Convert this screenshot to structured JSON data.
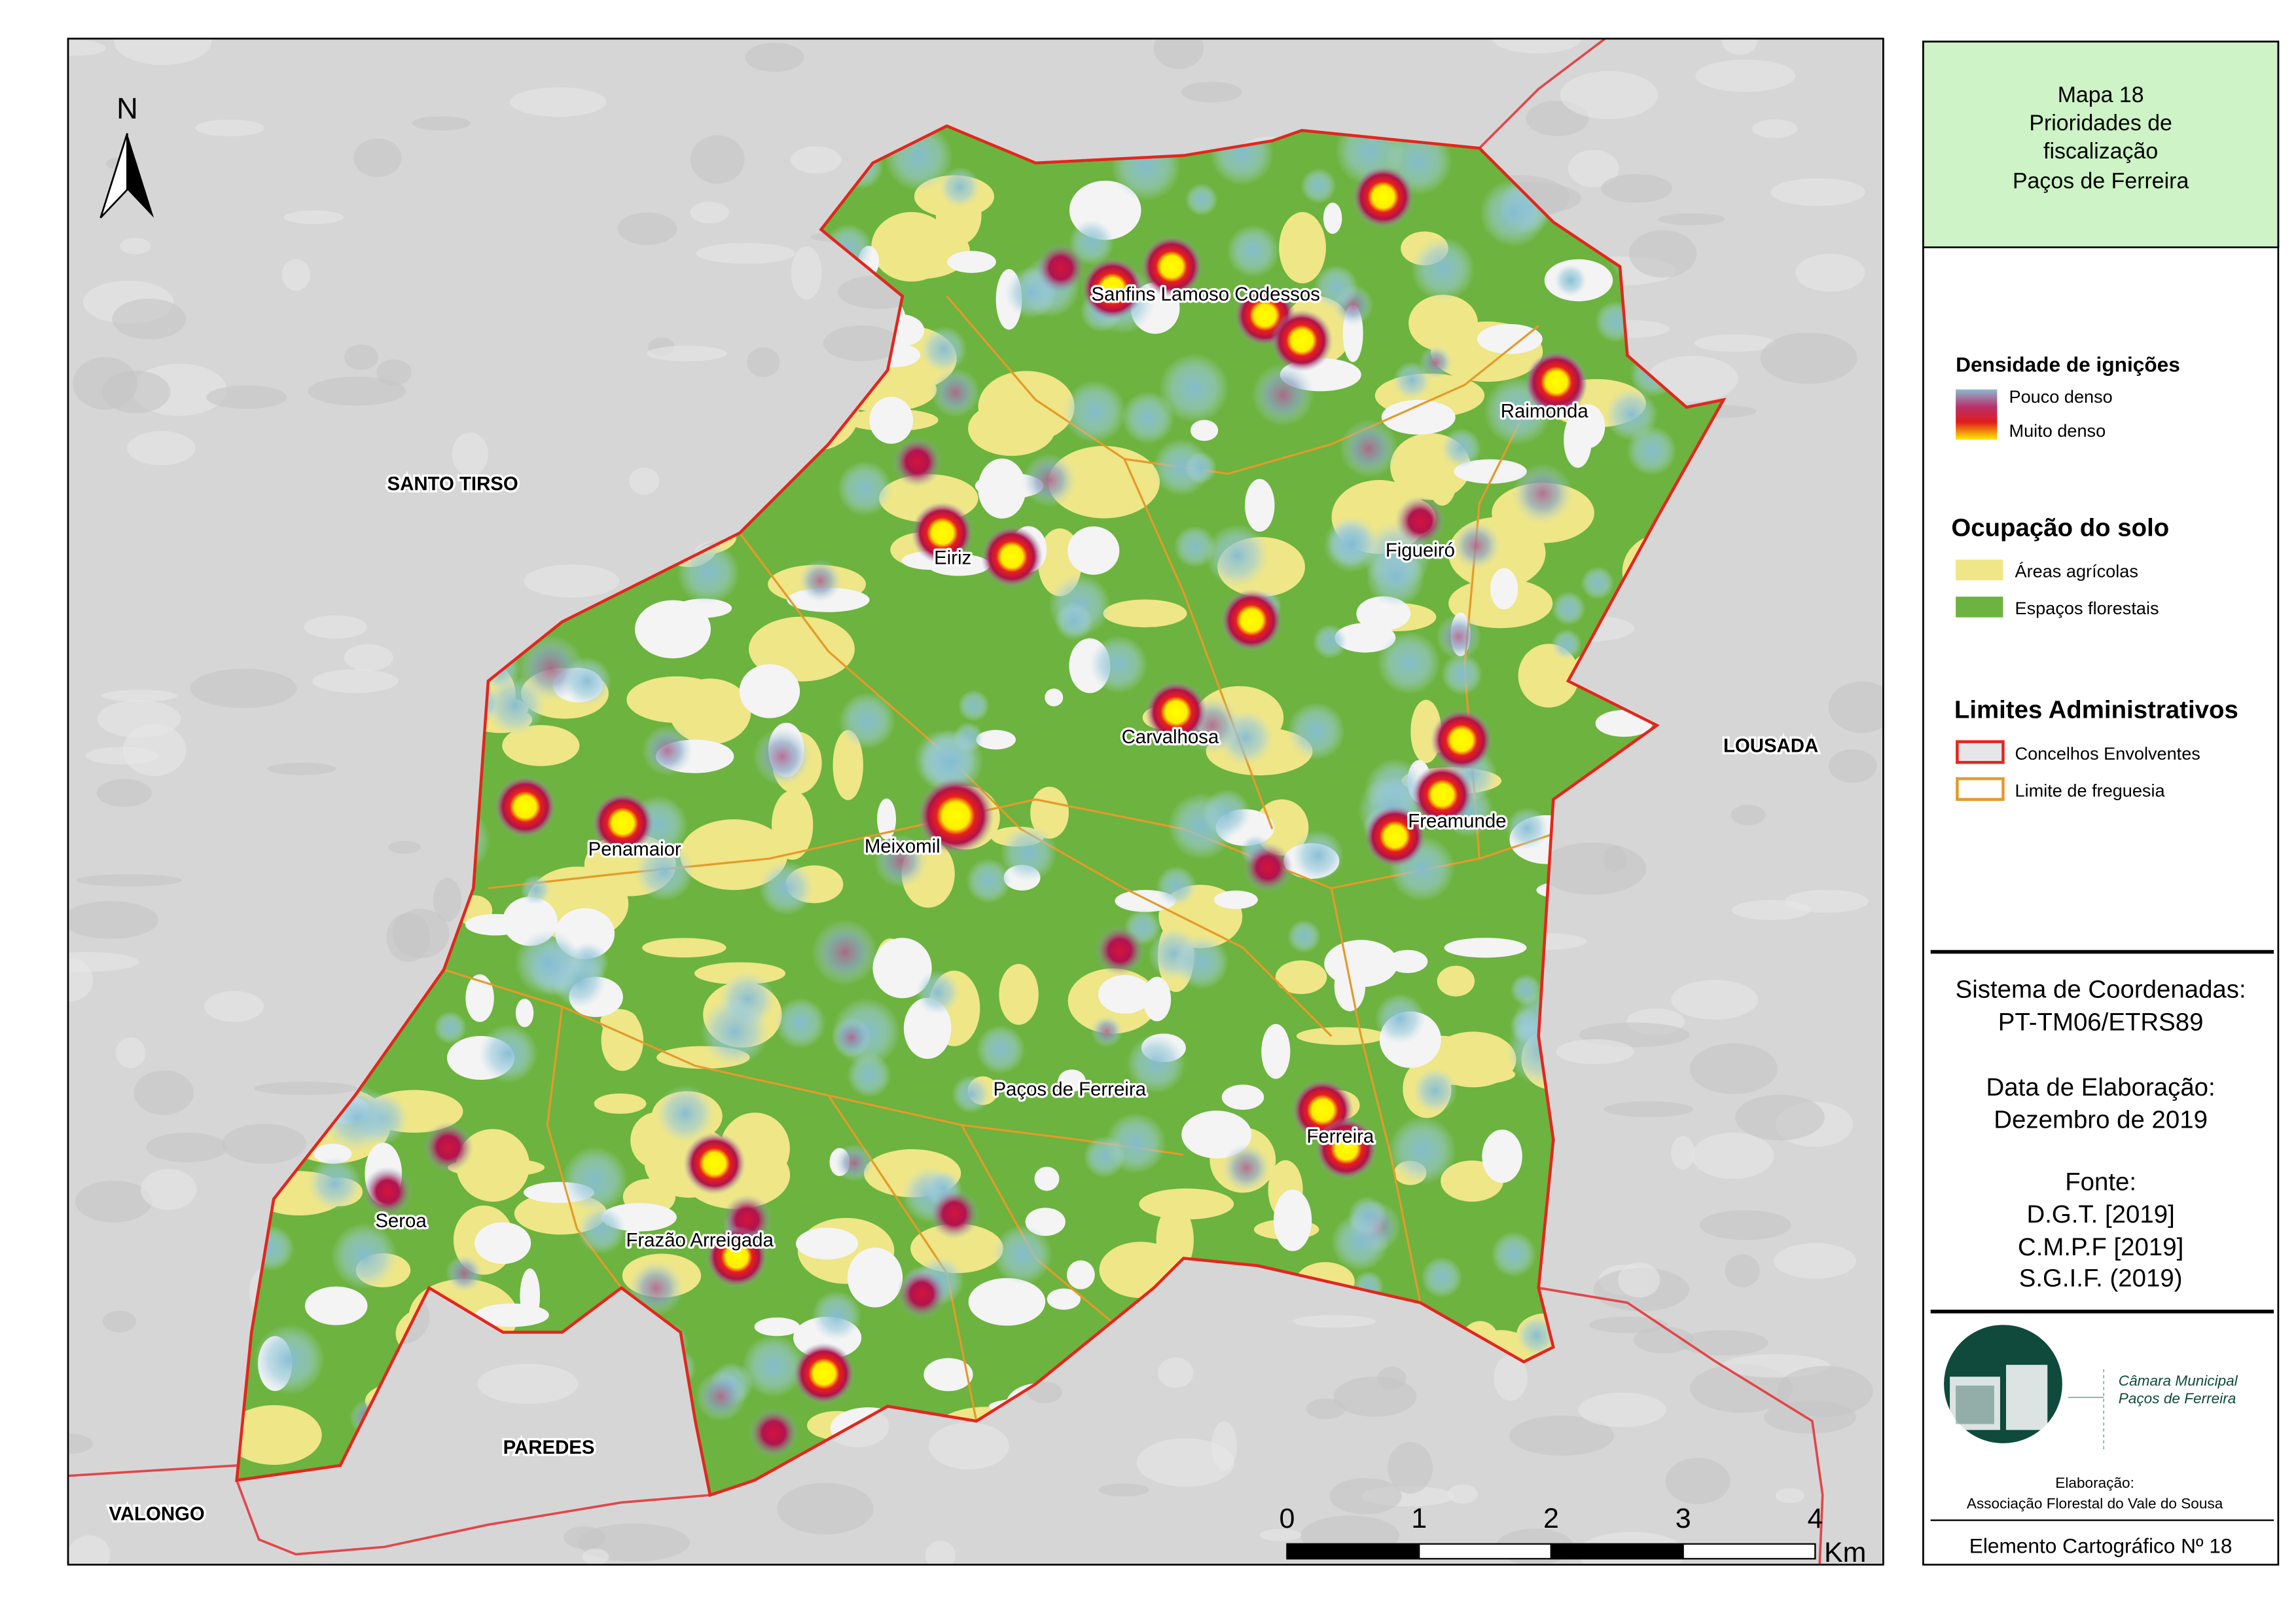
{
  "title": {
    "lines": [
      "Mapa 18",
      "Prioridades de",
      "fiscalização",
      "Paços de Ferreira"
    ]
  },
  "legend": {
    "density": {
      "heading": "Densidade de ignições",
      "low": "Pouco denso",
      "high": "Muito denso"
    },
    "land_use": {
      "heading": "Ocupação do solo",
      "items": [
        "Áreas agrícolas",
        "Espaços florestais"
      ]
    },
    "admin": {
      "heading": "Limites Administrativos",
      "items": [
        "Concelhos Envolventes",
        "Limite de freguesia"
      ]
    }
  },
  "info": {
    "lines": [
      "Sistema de Coordenadas:",
      "PT-TM06/ETRS89",
      "Data de Elaboração:",
      "Dezembro de 2019",
      "Fonte:",
      "D.G.T. [2019]",
      "C.M.P.F [2019]",
      "S.G.I.F. (2019)"
    ]
  },
  "logo": {
    "name_lines": [
      "Câmara Municipal",
      "Paços de Ferreira"
    ]
  },
  "credits": {
    "label": "Elaboração:",
    "author": "Associação Florestal do Vale do Sousa"
  },
  "footer": "Elemento Cartográfico Nº 18",
  "map": {
    "north": "N",
    "places": [
      "Sanfins Lamoso Codessos",
      "Raimonda",
      "Eiriz",
      "Figueiró",
      "Carvalhosa",
      "Freamunde",
      "Meixomil",
      "Penamaior",
      "Paços de Ferreira",
      "Ferreira",
      "Seroa",
      "Frazão Arreigada"
    ],
    "neighbors": [
      "SANTO TIRSO",
      "LOUSADA",
      "PAREDES",
      "VALONGO"
    ]
  },
  "scale_bar": {
    "ticks": [
      0,
      1,
      2,
      3,
      4
    ],
    "unit": "Km"
  }
}
